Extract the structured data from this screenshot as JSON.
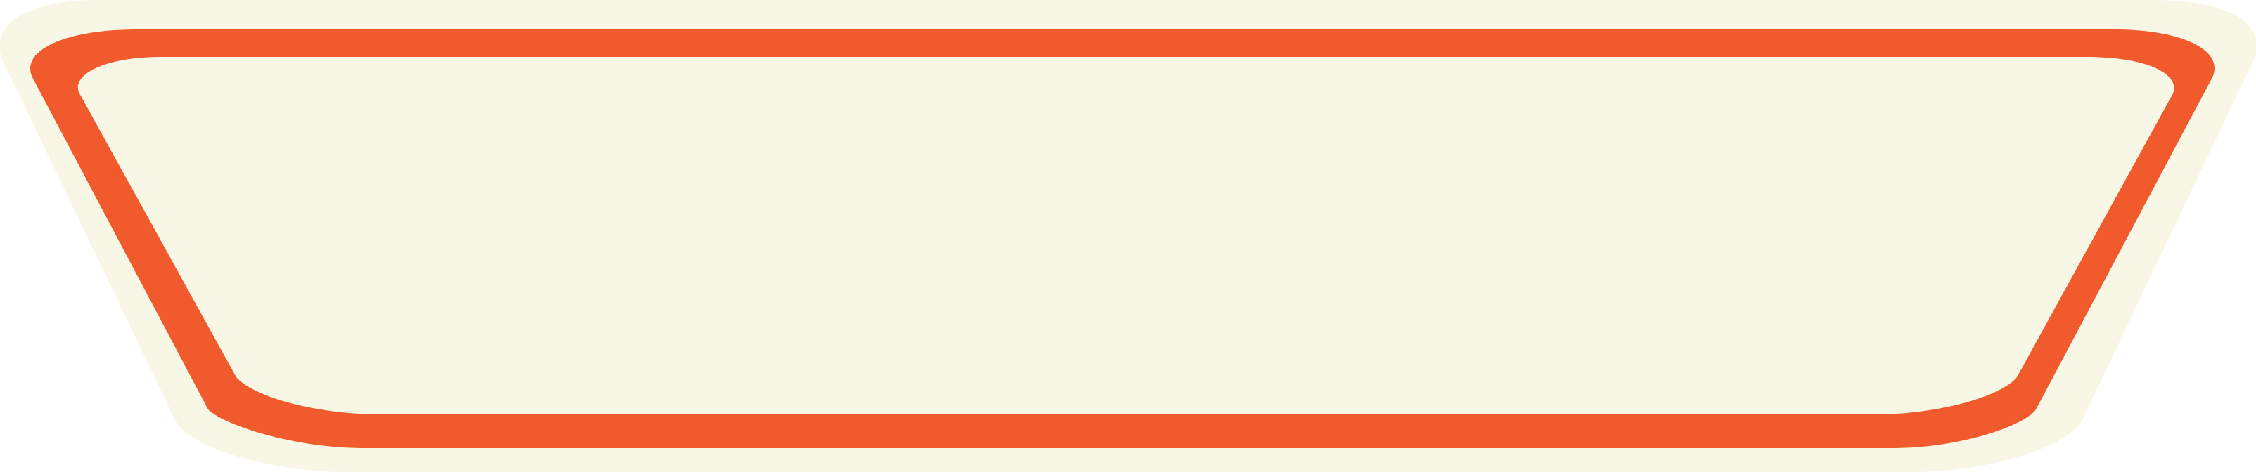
{
  "banner": {
    "label": "",
    "colors": {
      "outer_fill": "#f8f6e4",
      "frame_fill": "#f15a2c",
      "inner_fill": "#f8f6e4"
    }
  }
}
